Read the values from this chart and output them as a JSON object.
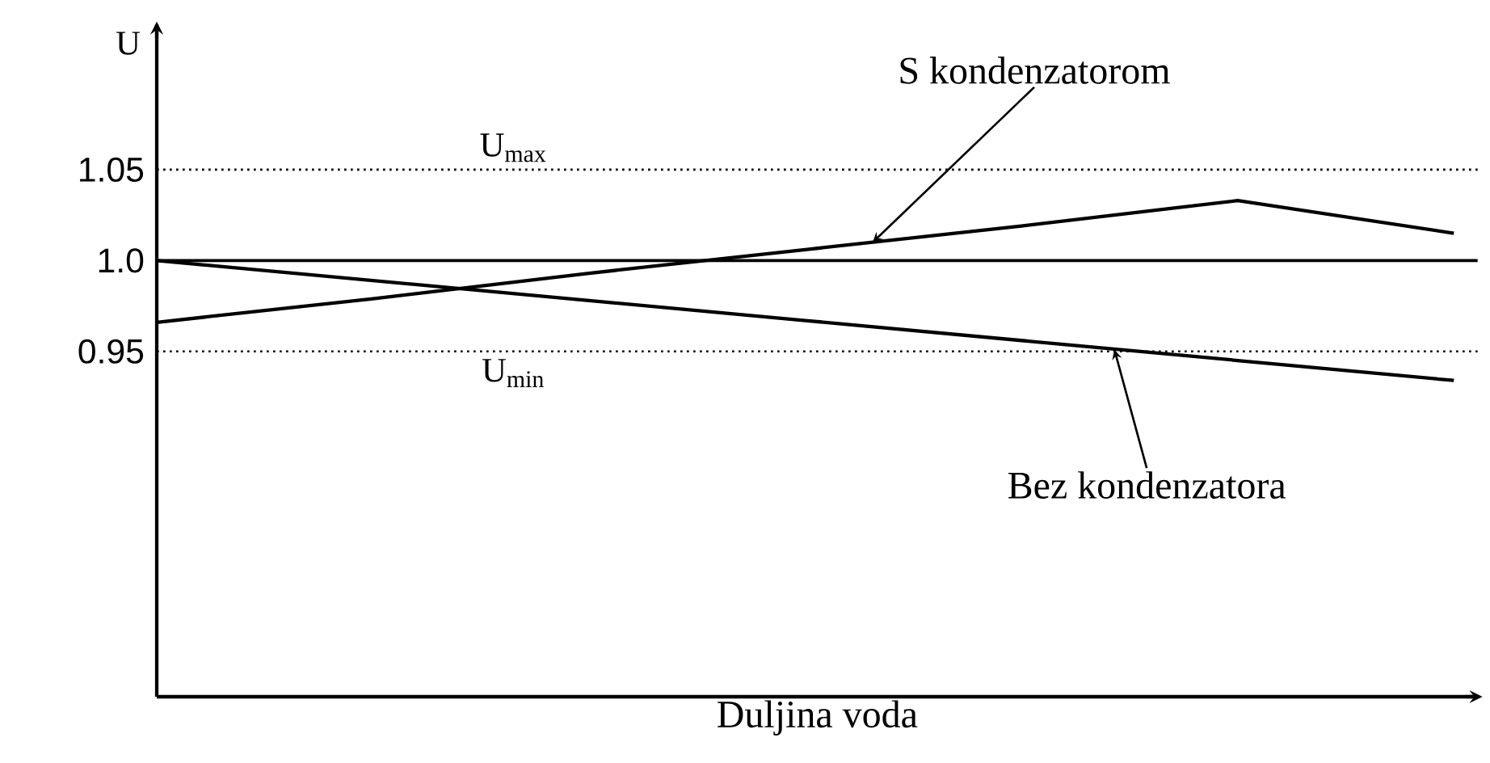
{
  "chart_data": {
    "type": "line",
    "xlabel": "Duljina voda",
    "ylabel": "U",
    "categories": [
      null,
      null,
      null,
      null,
      null,
      null,
      null
    ],
    "ylim": [
      0.76,
      1.13
    ],
    "yticks": [
      0.95,
      {
        "value": 1.0,
        "label": "1.0"
      },
      1.05
    ],
    "tick_labels": "y",
    "marker": "none",
    "line_style": "solid",
    "series": [
      {
        "values": [
          0.966,
          0.979,
          0.993,
          1.006,
          1.019,
          1.033,
          1.015
        ],
        "color": "#000000"
      },
      {
        "values": [
          1.0,
          0.989,
          0.978,
          0.967,
          0.956,
          0.945,
          0.934
        ],
        "color": "#000000"
      }
    ],
    "ref_lines": [
      {
        "axis": "y",
        "value": 1.05,
        "label": "U$_{max}$",
        "line_style": "dotted",
        "color": "#000000"
      },
      {
        "axis": "y",
        "value": 1.0,
        "label": null,
        "line_style": "solid",
        "color": "#000000"
      },
      {
        "axis": "y",
        "value": 0.95,
        "label": "U$_{min}$",
        "line_style": "dotted",
        "color": "#000000"
      }
    ],
    "annotations": [
      "S kondenzatorom",
      "Bez kondenzatora"
    ]
  }
}
